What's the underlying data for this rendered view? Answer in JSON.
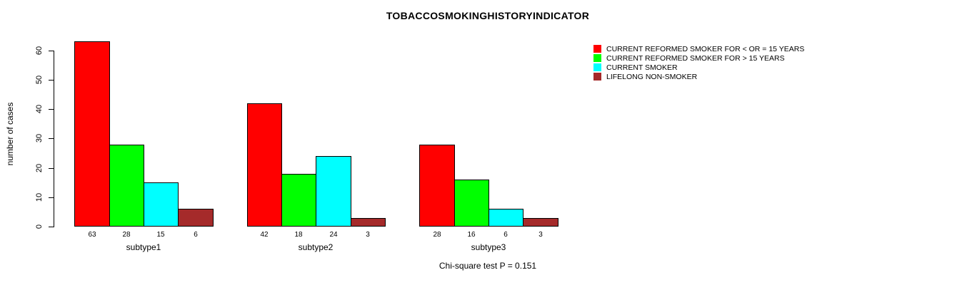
{
  "chart_data": {
    "type": "bar",
    "title": "TOBACCOSMOKINGHISTORYINDICATOR",
    "xlabel": "",
    "ylabel": "number of cases",
    "ylim": [
      0,
      60
    ],
    "y_ticks": [
      0,
      10,
      20,
      30,
      40,
      50,
      60
    ],
    "grid": false,
    "legend_position": "top-right",
    "bar_value_labels": true,
    "categories": [
      "subtype1",
      "subtype2",
      "subtype3"
    ],
    "series": [
      {
        "name": "CURRENT REFORMED SMOKER FOR < OR = 15 YEARS",
        "color": "#FF0000",
        "values": [
          63,
          42,
          28
        ]
      },
      {
        "name": "CURRENT REFORMED SMOKER FOR > 15 YEARS",
        "color": "#00FF00",
        "values": [
          28,
          18,
          16
        ]
      },
      {
        "name": "CURRENT SMOKER",
        "color": "#00FFFF",
        "values": [
          15,
          24,
          6
        ]
      },
      {
        "name": "LIFELONG NON-SMOKER",
        "color": "#A52A2A",
        "values": [
          6,
          3,
          3
        ]
      }
    ],
    "annotation": "Chi-square test P = 0.151"
  }
}
